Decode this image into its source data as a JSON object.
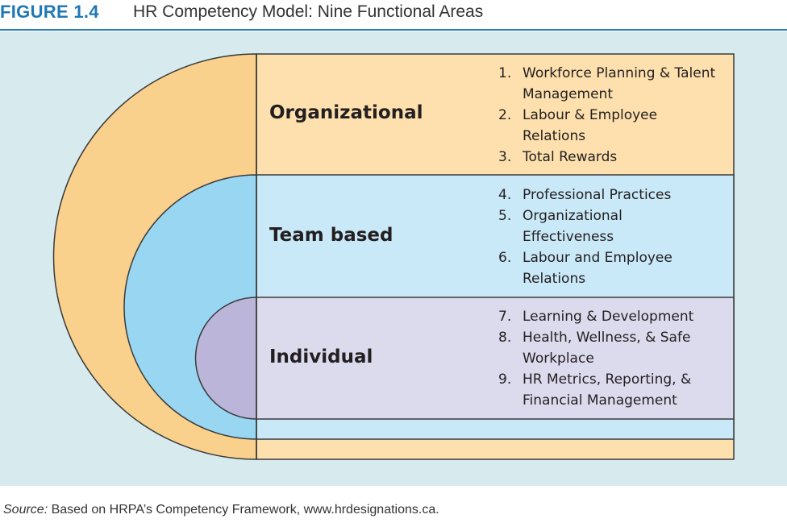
{
  "header": {
    "figure_label": "FIGURE 1.4",
    "title": "HR Competency Model: Nine Functional Areas"
  },
  "colors": {
    "organizational": "#fde0ad",
    "organizational_arc": "#f9d08c",
    "team": "#c9e9f8",
    "team_arc": "#98d6f2",
    "individual": "#dcdaed",
    "individual_arc": "#bcb5da",
    "panel": "#d7ebef",
    "accent": "#1f78b4"
  },
  "levels": [
    {
      "title": "Organizational",
      "items": [
        {
          "num": "1.",
          "text": "Workforce Planning & Talent Management"
        },
        {
          "num": "2.",
          "text": "Labour & Employee Relations"
        },
        {
          "num": "3.",
          "text": "Total Rewards"
        }
      ]
    },
    {
      "title": "Team based",
      "items": [
        {
          "num": "4.",
          "text": "Professional Practices"
        },
        {
          "num": "5.",
          "text": "Organizational Effectiveness"
        },
        {
          "num": "6.",
          "text": "Labour and Employee Relations"
        }
      ]
    },
    {
      "title": "Individual",
      "items": [
        {
          "num": "7.",
          "text": "Learning & Development"
        },
        {
          "num": "8.",
          "text": "Health, Wellness, & Safe Workplace"
        },
        {
          "num": "9.",
          "text": "HR Metrics, Reporting, & Financial Management"
        }
      ]
    }
  ],
  "source": {
    "label": "Source:",
    "text": " Based on HRPA’s Competency Framework, www.hrdesignations.ca."
  }
}
